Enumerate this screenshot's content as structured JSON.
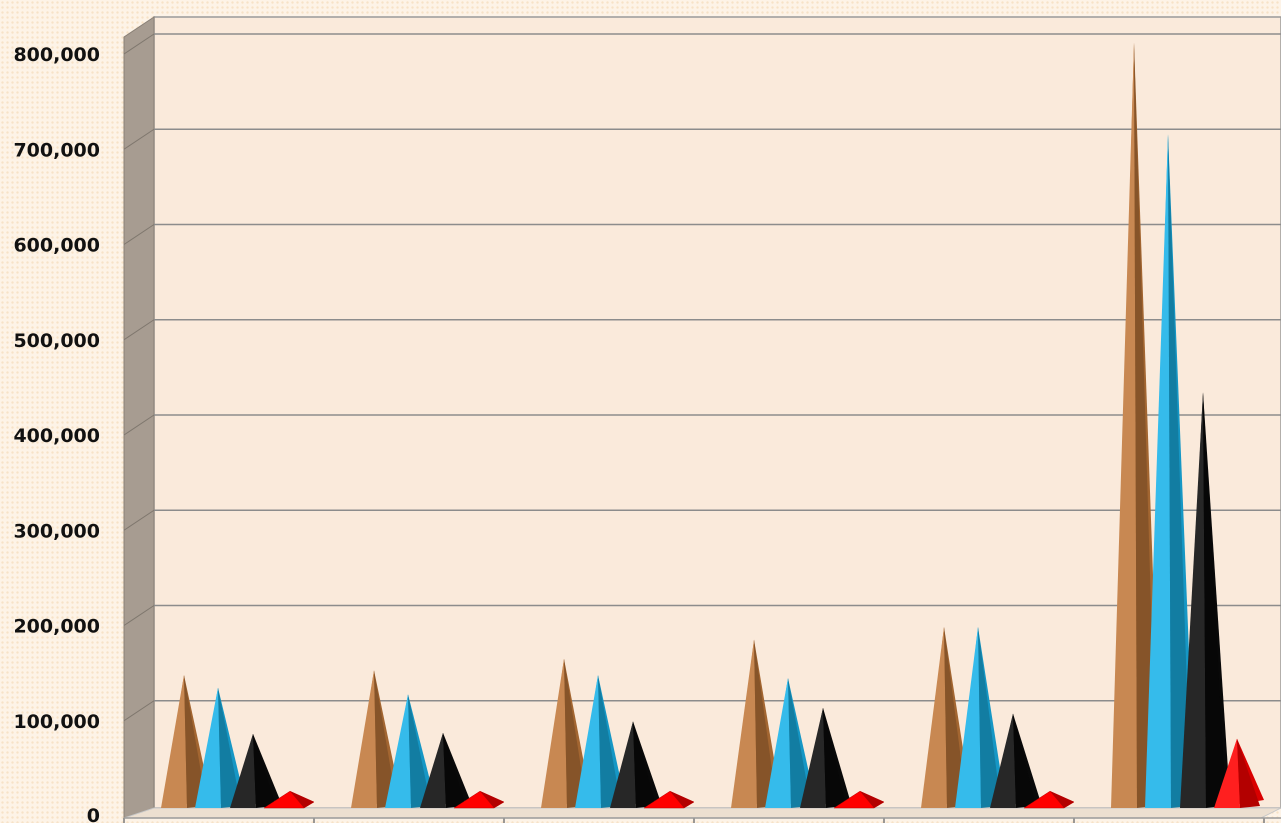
{
  "chart_data": {
    "type": "bar",
    "style": "3d-pyramid",
    "categories": [
      "",
      "",
      "",
      "",
      "",
      ""
    ],
    "series": [
      {
        "color": "#c0783a",
        "values": [
          138000,
          143000,
          155000,
          175000,
          188000,
          795000
        ]
      },
      {
        "color": "#1ab2e8",
        "values": [
          125000,
          118000,
          138000,
          135000,
          188000,
          700000
        ]
      },
      {
        "color": "#0a0a0a",
        "values": [
          77000,
          78000,
          90000,
          104000,
          98000,
          432000
        ]
      },
      {
        "color": "#ff0000",
        "values": [
          5000,
          5000,
          5000,
          5000,
          5000,
          72000
        ]
      }
    ],
    "ylim": [
      0,
      800000
    ],
    "y_ticks": [
      "0",
      "100,000",
      "200,000",
      "300,000",
      "400,000",
      "500,000",
      "600,000",
      "700,000",
      "800,000"
    ],
    "y_tick_values": [
      0,
      100000,
      200000,
      300000,
      400000,
      500000,
      600000,
      700000,
      800000
    ],
    "grid": true,
    "legend": "none",
    "xlabel": "",
    "ylabel": "",
    "title": ""
  }
}
